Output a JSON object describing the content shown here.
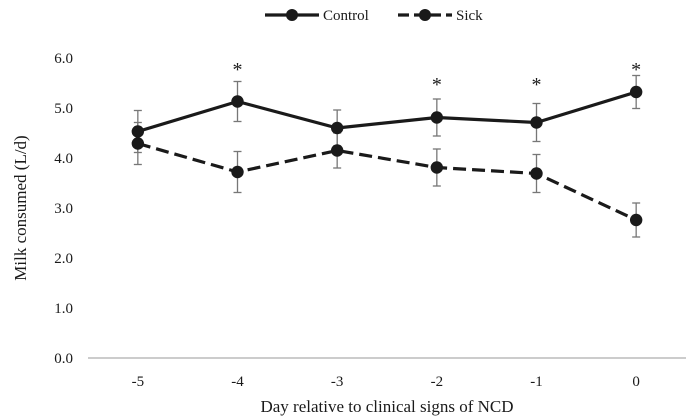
{
  "chart_data": {
    "type": "line",
    "title": "",
    "xlabel": "Day relative to clinical signs of NCD",
    "ylabel": "Milk consumed (L/d)",
    "categories": [
      "-5",
      "-4",
      "-3",
      "-2",
      "-1",
      "0"
    ],
    "ylim": [
      0,
      6
    ],
    "yticks": [
      "0.0",
      "1.0",
      "2.0",
      "3.0",
      "4.0",
      "5.0",
      "6.0"
    ],
    "ytick_values": [
      0,
      1,
      2,
      3,
      4,
      5,
      6
    ],
    "grid": false,
    "legend_position": "top-center",
    "series": [
      {
        "name": "Control",
        "style": "solid",
        "color": "#1a1a1a",
        "values": [
          4.53,
          5.13,
          4.6,
          4.81,
          4.71,
          5.32
        ],
        "error": [
          0.42,
          0.4,
          0.36,
          0.37,
          0.38,
          0.33
        ]
      },
      {
        "name": "Sick",
        "style": "dashed",
        "color": "#1a1a1a",
        "values": [
          4.29,
          3.72,
          4.15,
          3.81,
          3.69,
          2.76
        ],
        "error": [
          0.42,
          0.41,
          0.35,
          0.37,
          0.38,
          0.34
        ]
      }
    ],
    "annotations": [
      {
        "category": "-4",
        "text": "*",
        "y": 5.8
      },
      {
        "category": "-2",
        "text": "*",
        "y": 5.5
      },
      {
        "category": "-1",
        "text": "*",
        "y": 5.5
      },
      {
        "category": "0",
        "text": "*",
        "y": 5.8
      }
    ]
  }
}
